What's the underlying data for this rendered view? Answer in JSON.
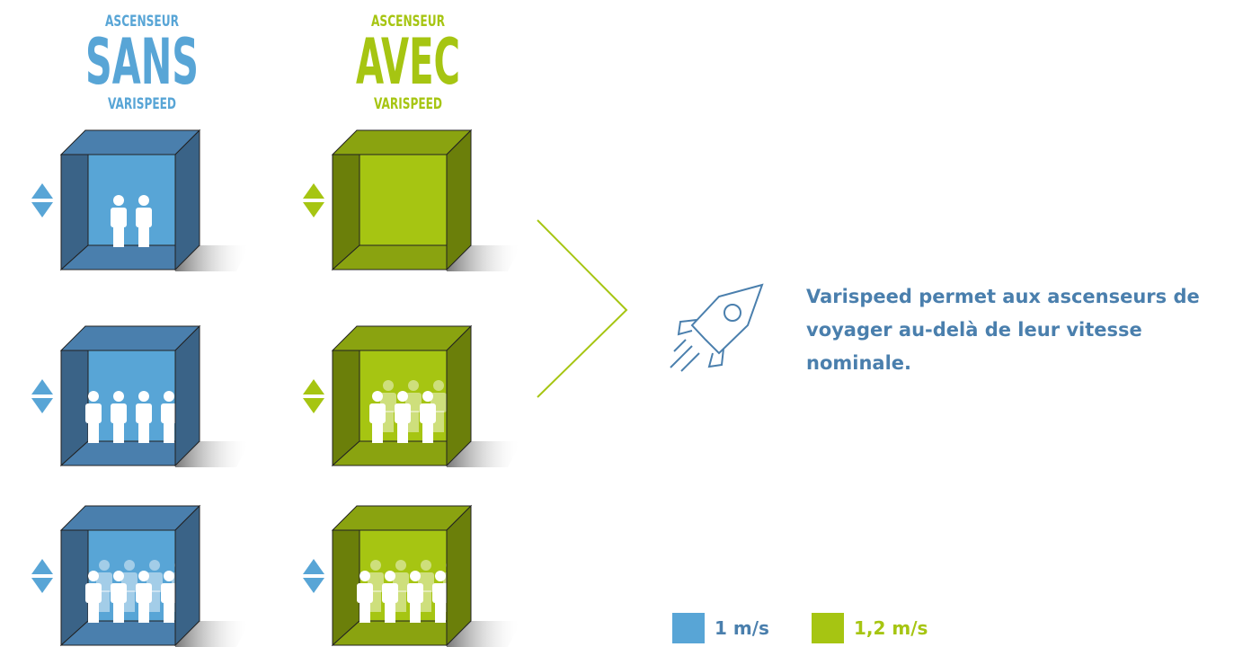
{
  "columns": [
    {
      "top": "ASCENSEUR",
      "main": "SANS",
      "bottom": "VARISPEED",
      "color": "#58a5d6"
    },
    {
      "top": "ASCENSEUR",
      "main": "AVEC",
      "bottom": "VARISPEED",
      "color": "#a6c512"
    }
  ],
  "description": "Varispeed permet aux ascenseurs de voyager au-delà de leur vitesse nominale.",
  "legend": [
    {
      "label": "1 m/s",
      "color": "#58a5d6"
    },
    {
      "label": "1,2 m/s",
      "color": "#a6c512"
    }
  ]
}
